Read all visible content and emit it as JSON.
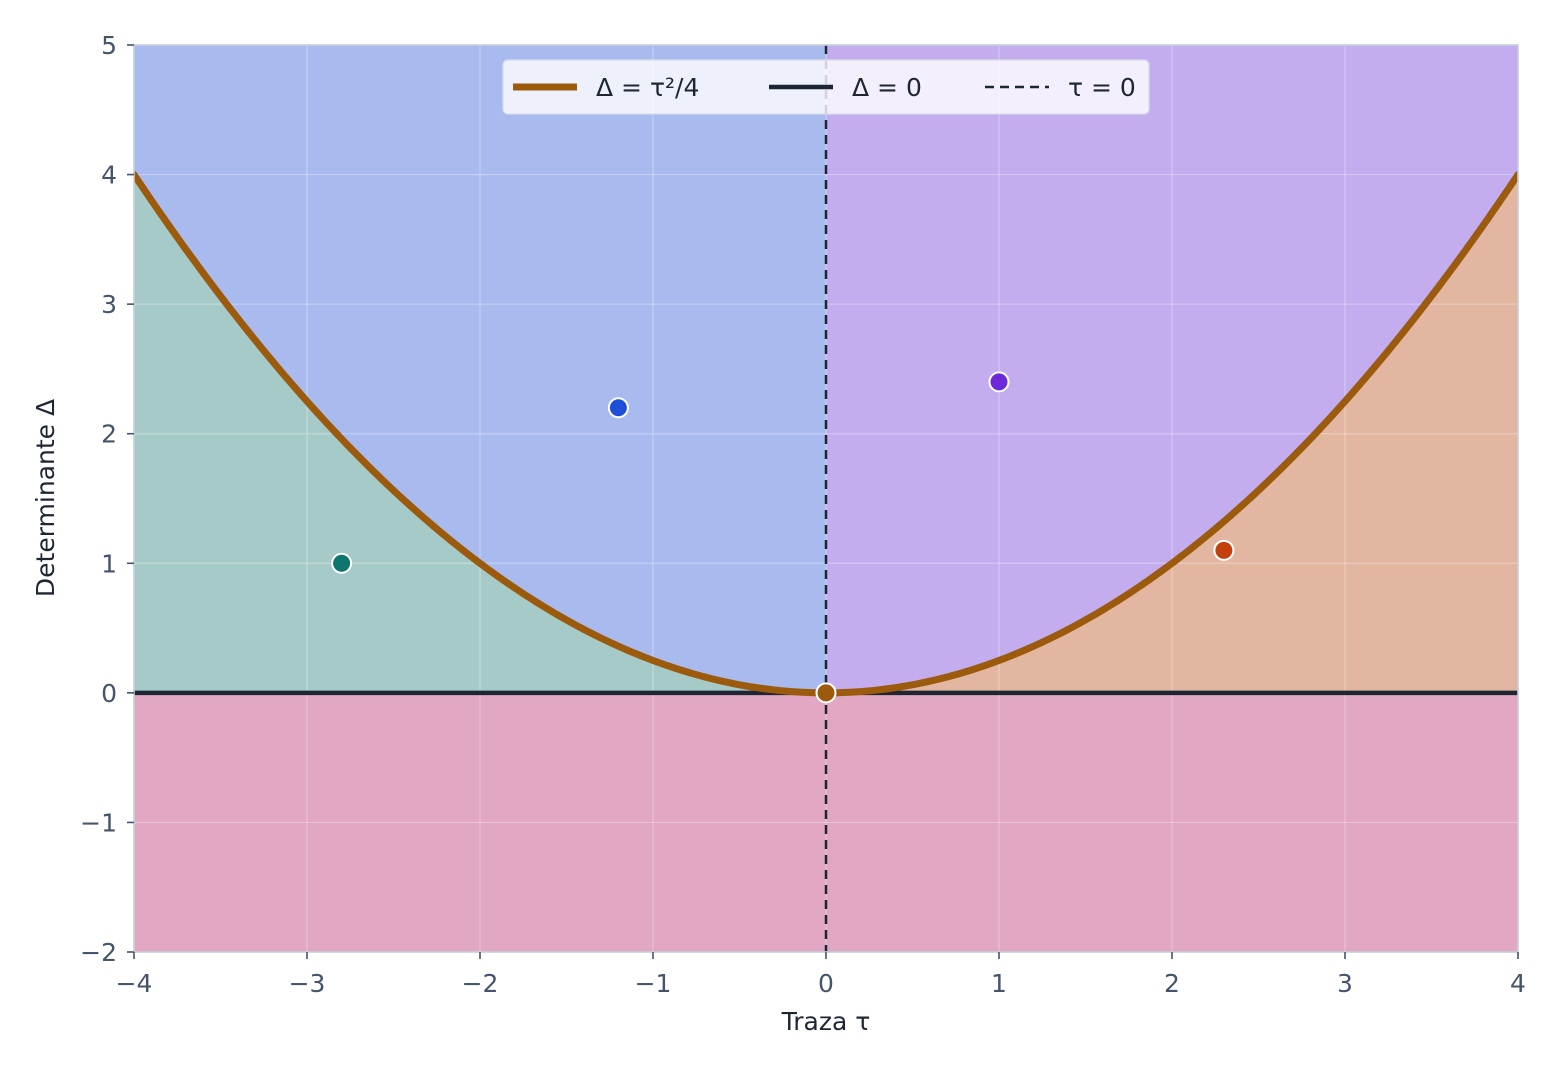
{
  "chart_data": {
    "type": "scatter",
    "title": "",
    "xlabel": "Traza τ",
    "ylabel": "Determinante Δ",
    "xlim": [
      -4,
      4
    ],
    "ylim": [
      -2,
      5
    ],
    "x_ticks": [
      {
        "value": -4,
        "label": "−4"
      },
      {
        "value": -3,
        "label": "−3"
      },
      {
        "value": -2,
        "label": "−2"
      },
      {
        "value": -1,
        "label": "−1"
      },
      {
        "value": 0,
        "label": "0"
      },
      {
        "value": 1,
        "label": "1"
      },
      {
        "value": 2,
        "label": "2"
      },
      {
        "value": 3,
        "label": "3"
      },
      {
        "value": 4,
        "label": "4"
      }
    ],
    "y_ticks": [
      {
        "value": -2,
        "label": "−2"
      },
      {
        "value": -1,
        "label": "−1"
      },
      {
        "value": 0,
        "label": "0"
      },
      {
        "value": 1,
        "label": "1"
      },
      {
        "value": 2,
        "label": "2"
      },
      {
        "value": 3,
        "label": "3"
      },
      {
        "value": 4,
        "label": "4"
      },
      {
        "value": 5,
        "label": "5"
      }
    ],
    "grid": true,
    "legend": {
      "placement": "top-center",
      "entries": [
        {
          "label": "Δ = τ²/4",
          "color": "#9c5a0c",
          "style": "solid-thick"
        },
        {
          "label": "Δ = 0",
          "color": "#1e2533",
          "style": "solid"
        },
        {
          "label": "τ = 0",
          "color": "#1e2533",
          "style": "dashed"
        }
      ]
    },
    "regions": [
      {
        "id": "delta-negative",
        "color": "#e2a7c2"
      },
      {
        "id": "left-below-parabola",
        "color": "#a6cac8"
      },
      {
        "id": "left-above-parabola",
        "color": "#a8baee"
      },
      {
        "id": "right-above-parabola",
        "color": "#c3adee"
      },
      {
        "id": "right-below-parabola",
        "color": "#e3b6a2"
      }
    ],
    "curve": {
      "expression": "Δ = τ²/4",
      "color": "#9c5a0c"
    },
    "points": [
      {
        "x": -2.8,
        "y": 1.0,
        "color": "#0f766e"
      },
      {
        "x": -1.2,
        "y": 2.2,
        "color": "#1d4ed8"
      },
      {
        "x": 1.0,
        "y": 2.4,
        "color": "#6d28d9"
      },
      {
        "x": 2.3,
        "y": 1.1,
        "color": "#c2410c"
      },
      {
        "x": 0.0,
        "y": 0.0,
        "color": "#9c5a0c"
      }
    ]
  }
}
